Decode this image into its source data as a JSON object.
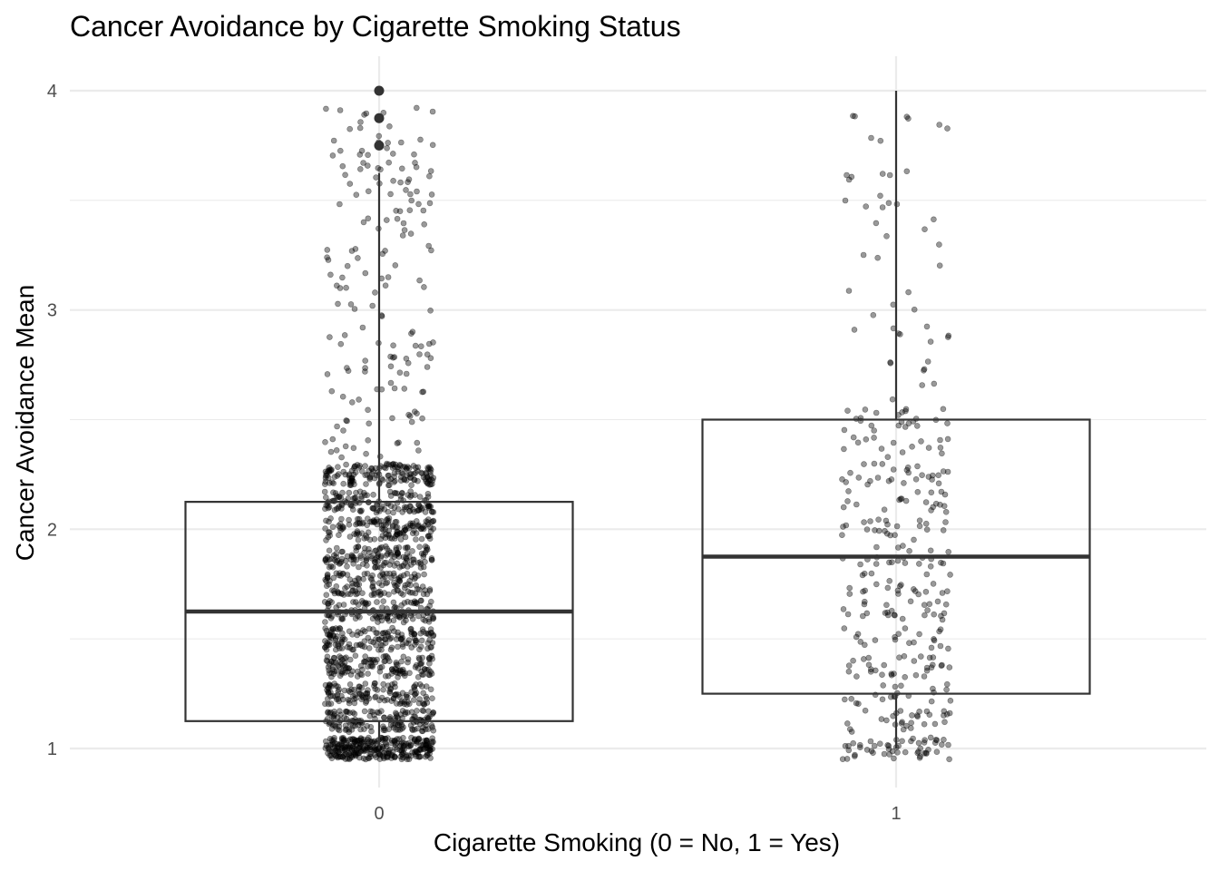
{
  "chart_data": {
    "type": "boxplot",
    "title": "Cancer Avoidance by Cigarette Smoking Status",
    "xlabel": "Cigarette Smoking (0 = No, 1 = Yes)",
    "ylabel": "Cancer Avoidance Mean",
    "categories": [
      "0",
      "1"
    ],
    "y_ticks": [
      "1",
      "2",
      "3",
      "4"
    ],
    "ylim": [
      0.87,
      4.15
    ],
    "grid": true,
    "jittered_points": true,
    "boxes": [
      {
        "category": "0",
        "q1": 1.125,
        "median": 1.625,
        "q3": 2.125,
        "whisker_low": 1.0,
        "whisker_high": 3.625,
        "outliers": [
          3.75,
          3.875,
          4.0
        ]
      },
      {
        "category": "1",
        "q1": 1.25,
        "median": 1.875,
        "q3": 2.5,
        "whisker_low": 1.0,
        "whisker_high": 4.0,
        "outliers": []
      }
    ],
    "colors": {
      "box_line": "#333333",
      "points": "#000000",
      "grid": "#ebebeb"
    }
  }
}
